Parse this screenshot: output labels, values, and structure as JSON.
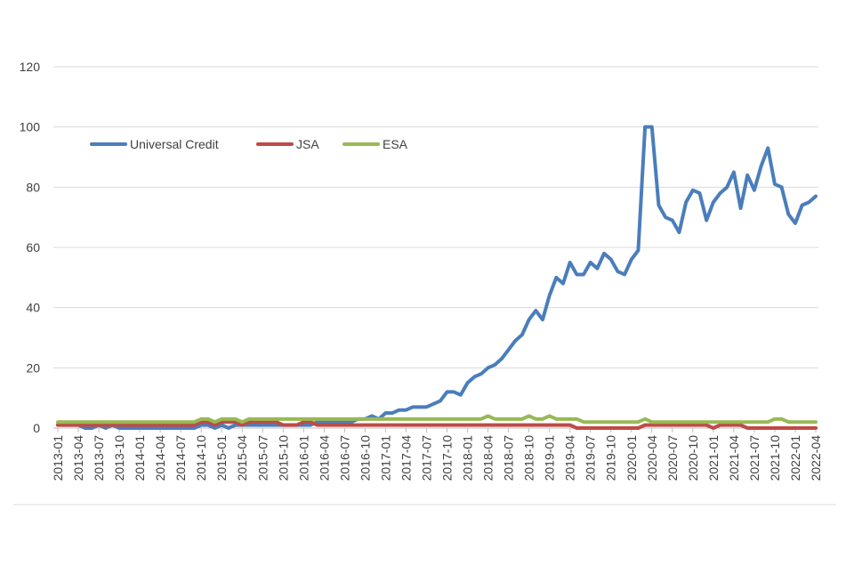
{
  "chart_data": {
    "type": "line",
    "categories": [
      "2013-01",
      null,
      null,
      "2013-04",
      null,
      null,
      "2013-07",
      null,
      null,
      "2013-10",
      null,
      null,
      "2014-01",
      null,
      null,
      "2014-04",
      null,
      null,
      "2014-07",
      null,
      null,
      "2014-10",
      null,
      null,
      "2015-01",
      null,
      null,
      "2015-04",
      null,
      null,
      "2015-07",
      null,
      null,
      "2015-10",
      null,
      null,
      "2016-01",
      null,
      null,
      "2016-04",
      null,
      null,
      "2016-07",
      null,
      null,
      "2016-10",
      null,
      null,
      "2017-01",
      null,
      null,
      "2017-04",
      null,
      null,
      "2017-07",
      null,
      null,
      "2017-10",
      null,
      null,
      "2018-01",
      null,
      null,
      "2018-04",
      null,
      null,
      "2018-07",
      null,
      null,
      "2018-10",
      null,
      null,
      "2019-01",
      null,
      null,
      "2019-04",
      null,
      null,
      "2019-07",
      null,
      null,
      "2019-10",
      null,
      null,
      "2020-01",
      null,
      null,
      "2020-04",
      null,
      null,
      "2020-07",
      null,
      null,
      "2020-10",
      null,
      null,
      "2021-01",
      null,
      null,
      "2021-04",
      null,
      null,
      "2021-07",
      null,
      null,
      "2021-10",
      null,
      null,
      "2022-01",
      null,
      null,
      "2022-04"
    ],
    "series": [
      {
        "name": "Universal Credit",
        "color": "#4a7ebb",
        "values": [
          1,
          1,
          1,
          1,
          0,
          0,
          1,
          0,
          1,
          0,
          0,
          0,
          0,
          0,
          0,
          0,
          0,
          0,
          0,
          0,
          0,
          1,
          1,
          0,
          1,
          0,
          1,
          1,
          1,
          1,
          1,
          1,
          1,
          1,
          1,
          1,
          1,
          1,
          2,
          2,
          2,
          2,
          2,
          2,
          3,
          3,
          4,
          3,
          5,
          5,
          6,
          6,
          7,
          7,
          7,
          8,
          9,
          12,
          12,
          11,
          15,
          17,
          18,
          20,
          21,
          23,
          26,
          29,
          31,
          36,
          39,
          36,
          44,
          50,
          48,
          55,
          51,
          51,
          55,
          53,
          58,
          56,
          52,
          51,
          56,
          59,
          100,
          100,
          74,
          70,
          69,
          65,
          75,
          79,
          78,
          69,
          75,
          78,
          80,
          85,
          73,
          84,
          79,
          87,
          93,
          81,
          80,
          71,
          68,
          74,
          75,
          77
        ]
      },
      {
        "name": "JSA",
        "color": "#be4b48",
        "values": [
          1,
          1,
          1,
          1,
          1,
          1,
          1,
          1,
          1,
          1,
          1,
          1,
          1,
          1,
          1,
          1,
          1,
          1,
          1,
          1,
          1,
          2,
          2,
          1,
          2,
          2,
          2,
          1,
          2,
          2,
          2,
          2,
          2,
          1,
          1,
          1,
          2,
          2,
          1,
          1,
          1,
          1,
          1,
          1,
          1,
          1,
          1,
          1,
          1,
          1,
          1,
          1,
          1,
          1,
          1,
          1,
          1,
          1,
          1,
          1,
          1,
          1,
          1,
          1,
          1,
          1,
          1,
          1,
          1,
          1,
          1,
          1,
          1,
          1,
          1,
          1,
          0,
          0,
          0,
          0,
          0,
          0,
          0,
          0,
          0,
          0,
          1,
          1,
          1,
          1,
          1,
          1,
          1,
          1,
          1,
          1,
          0,
          1,
          1,
          1,
          1,
          0,
          0,
          0,
          0,
          0,
          0,
          0,
          0,
          0,
          0,
          0
        ]
      },
      {
        "name": "ESA",
        "color": "#98b954",
        "values": [
          2,
          2,
          2,
          2,
          2,
          2,
          2,
          2,
          2,
          2,
          2,
          2,
          2,
          2,
          2,
          2,
          2,
          2,
          2,
          2,
          2,
          3,
          3,
          2,
          3,
          3,
          3,
          2,
          3,
          3,
          3,
          3,
          3,
          3,
          3,
          3,
          3,
          3,
          3,
          3,
          3,
          3,
          3,
          3,
          3,
          3,
          3,
          3,
          3,
          3,
          3,
          3,
          3,
          3,
          3,
          3,
          3,
          3,
          3,
          3,
          3,
          3,
          3,
          4,
          3,
          3,
          3,
          3,
          3,
          4,
          3,
          3,
          4,
          3,
          3,
          3,
          3,
          2,
          2,
          2,
          2,
          2,
          2,
          2,
          2,
          2,
          3,
          2,
          2,
          2,
          2,
          2,
          2,
          2,
          2,
          2,
          2,
          2,
          2,
          2,
          2,
          2,
          2,
          2,
          2,
          3,
          3,
          2,
          2,
          2,
          2,
          2
        ]
      }
    ],
    "ylim": [
      0,
      120
    ],
    "yticks": [
      0,
      20,
      40,
      60,
      80,
      100,
      120
    ],
    "grid": true,
    "legend": "top-left"
  }
}
